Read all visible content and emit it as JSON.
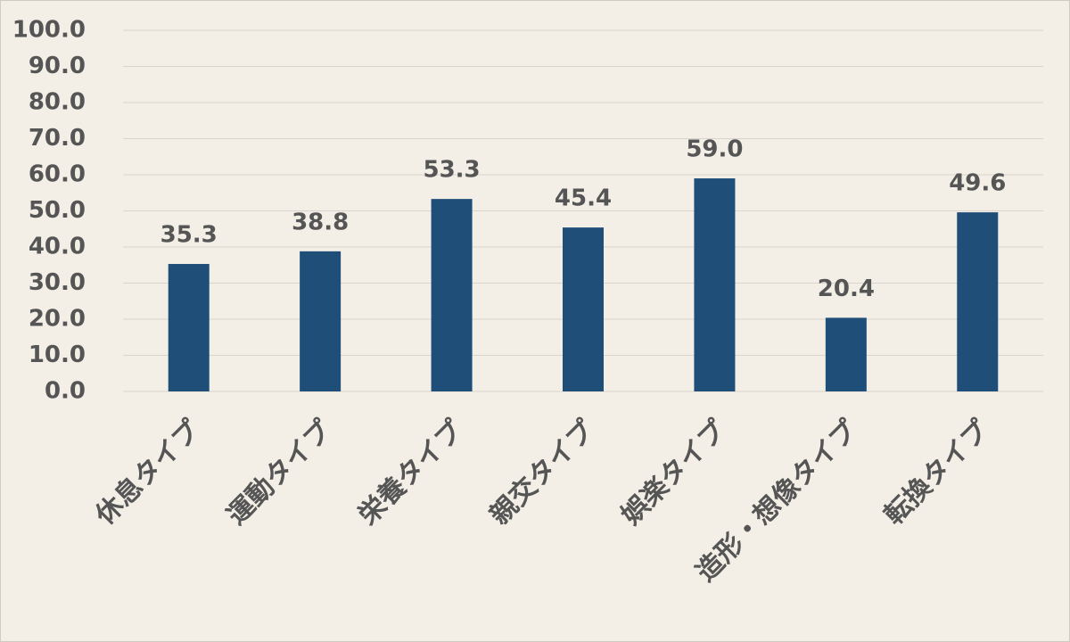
{
  "chart_data": {
    "type": "bar",
    "categories": [
      "休息タイプ",
      "運動タイプ",
      "栄養タイプ",
      "親交タイプ",
      "娯楽タイプ",
      "造形・想像タイプ",
      "転換タイプ"
    ],
    "values": [
      35.3,
      38.8,
      53.3,
      45.4,
      59.0,
      20.4,
      49.6
    ],
    "value_labels": [
      "35.3",
      "38.8",
      "53.3",
      "45.4",
      "59.0",
      "20.4",
      "49.6"
    ],
    "color": "#1f4e79",
    "ylim": [
      0,
      100
    ],
    "yticks": [
      {
        "value": 0,
        "label": "0.0"
      },
      {
        "value": 10,
        "label": "10.0"
      },
      {
        "value": 20,
        "label": "20.0"
      },
      {
        "value": 30,
        "label": "30.0"
      },
      {
        "value": 40,
        "label": "40.0"
      },
      {
        "value": 50,
        "label": "50.0"
      },
      {
        "value": 60,
        "label": "60.0"
      },
      {
        "value": 70,
        "label": "70.0"
      },
      {
        "value": 80,
        "label": "80.0"
      },
      {
        "value": 90,
        "label": "90.0"
      },
      {
        "value": 100,
        "label": "100.0"
      }
    ],
    "grid": true
  }
}
